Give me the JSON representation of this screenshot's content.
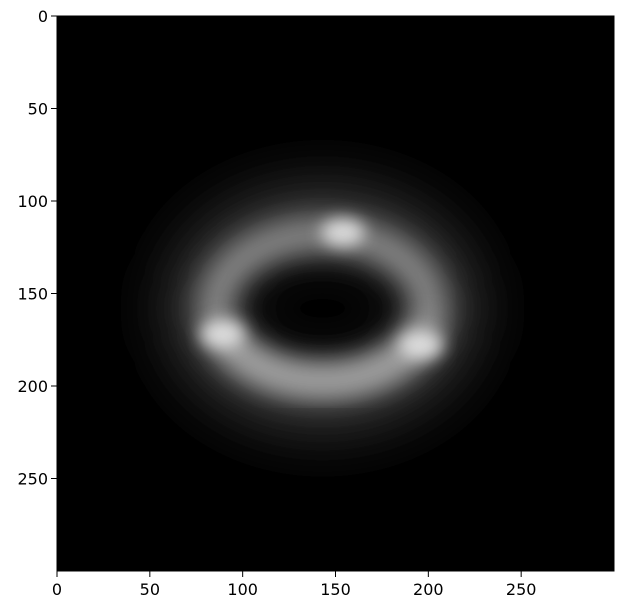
{
  "figure": {
    "type": "image",
    "colormap": "gray",
    "colors": {
      "background": "#000000",
      "ring": "#e6e6e6",
      "axes": "#000000"
    },
    "ring": {
      "center_x": 143,
      "center_y": 158,
      "radius_x": 58,
      "radius_y": 40,
      "bright_spots": [
        {
          "x": 154,
          "y": 117
        },
        {
          "x": 89,
          "y": 172
        },
        {
          "x": 196,
          "y": 178
        }
      ]
    }
  },
  "chart_data": {
    "type": "heatmap",
    "image_size": [
      300,
      300
    ],
    "xlim": [
      0,
      300
    ],
    "ylim": [
      300,
      0
    ],
    "xticks": [
      "0",
      "50",
      "100",
      "150",
      "200",
      "250"
    ],
    "yticks": [
      "0",
      "50",
      "100",
      "150",
      "200",
      "250"
    ],
    "title": "",
    "xlabel": "",
    "ylabel": ""
  }
}
